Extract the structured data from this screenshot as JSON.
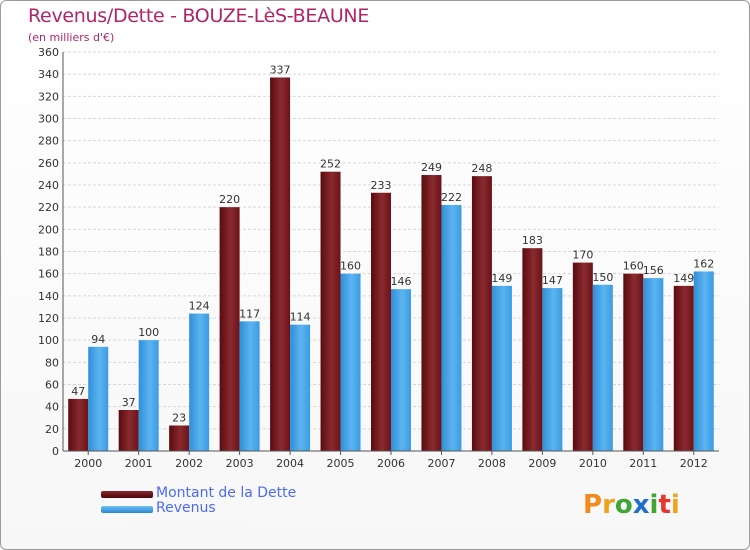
{
  "header": {
    "title": "Revenus/Dette - BOUZE-LèS-BEAUNE",
    "subtitle": "(en milliers d'€)"
  },
  "legend": {
    "items": [
      {
        "label": "Montant de la Dette",
        "color": "#6b0e12"
      },
      {
        "label": "Revenus",
        "color": "#3a9be0"
      }
    ]
  },
  "logo": {
    "text": "Proxiti",
    "letters": [
      {
        "ch": "P",
        "color": "#f28a1c"
      },
      {
        "ch": "r",
        "color": "#f0a21e"
      },
      {
        "ch": "o",
        "color": "#3fa535"
      },
      {
        "ch": "x",
        "color": "#1e6fd0"
      },
      {
        "ch": "i",
        "color": "#3fa535"
      },
      {
        "ch": "t",
        "color": "#e8352c"
      },
      {
        "ch": "i",
        "color": "#f0a21e"
      }
    ]
  },
  "chart_data": {
    "type": "bar",
    "title": "Revenus/Dette - BOUZE-LèS-BEAUNE",
    "subtitle": "(en milliers d'€)",
    "xlabel": "",
    "ylabel": "",
    "ylim": [
      0,
      360
    ],
    "yticks": [
      0,
      20,
      40,
      60,
      80,
      100,
      120,
      140,
      160,
      180,
      200,
      220,
      240,
      260,
      280,
      300,
      320,
      340,
      360
    ],
    "grid": true,
    "legend_position": "bottom-left",
    "categories": [
      "2000",
      "2001",
      "2002",
      "2003",
      "2004",
      "2005",
      "2006",
      "2007",
      "2008",
      "2009",
      "2010",
      "2011",
      "2012"
    ],
    "series": [
      {
        "name": "Montant de la Dette",
        "color": "#7a1a1f",
        "values": [
          47,
          37,
          23,
          220,
          337,
          252,
          233,
          249,
          248,
          183,
          170,
          160,
          149
        ]
      },
      {
        "name": "Revenus",
        "color": "#4aa8ea",
        "values": [
          94,
          100,
          124,
          117,
          114,
          160,
          146,
          222,
          149,
          147,
          150,
          156,
          162
        ]
      }
    ]
  }
}
